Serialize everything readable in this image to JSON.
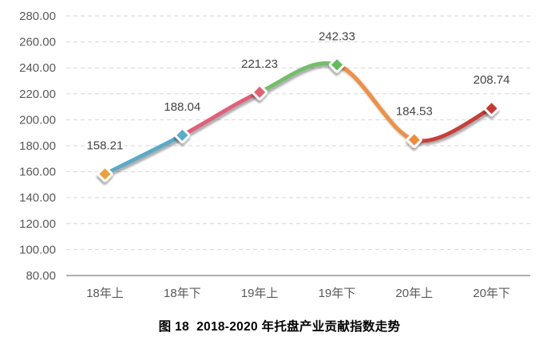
{
  "chart_data": {
    "type": "line",
    "title": "图 18  2018-2020 年托盘产业贡献指数走势",
    "categories": [
      "18年上",
      "18年下",
      "19年上",
      "19年下",
      "20年上",
      "20年下"
    ],
    "values": [
      158.21,
      188.04,
      221.23,
      242.33,
      184.53,
      208.74
    ],
    "data_labels": [
      "158.21",
      "188.04",
      "221.23",
      "242.33",
      "184.53",
      "208.74"
    ],
    "ylim": [
      80,
      280
    ],
    "ytick_step": 20,
    "ytick_labels": [
      "280.00",
      "260.00",
      "240.00",
      "220.00",
      "200.00",
      "180.00",
      "160.00",
      "140.00",
      "120.00",
      "100.00",
      "80.00"
    ],
    "xlabel": "",
    "ylabel": "",
    "legend": "none",
    "grid": "horizontal-dashed",
    "line_smooth": true,
    "segment_colors": [
      "#5BA9C6",
      "#E0607A",
      "#74BC6C",
      "#EB9148",
      "#C5413A"
    ],
    "marker_colors": [
      "#E9A23B",
      "#59ADC9",
      "#DF6073",
      "#63BA5F",
      "#EC8D3D",
      "#C23B33"
    ],
    "marker_shape": "diamond",
    "colors": {
      "axis_label": "#595959",
      "data_label": "#444444",
      "gridline": "#D6D6D6",
      "axis_line": "#7F7F7F",
      "marker_border": "#FFFFFF",
      "background": "#FFFFFF"
    }
  },
  "caption": {
    "text": "图 18  2018-2020 年托盘产业贡献指数走势"
  }
}
